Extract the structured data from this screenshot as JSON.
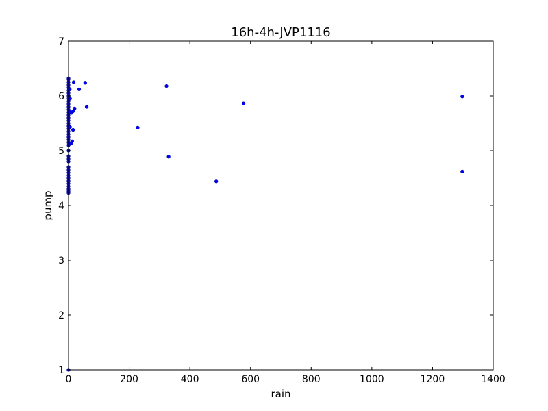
{
  "chart_data": {
    "type": "scatter",
    "title": "16h-4h-JVP1116",
    "xlabel": "rain",
    "ylabel": "pump",
    "xlim": [
      0,
      1400
    ],
    "ylim": [
      1,
      7
    ],
    "xticks": [
      0,
      200,
      400,
      600,
      800,
      1000,
      1200,
      1400
    ],
    "yticks": [
      1,
      2,
      3,
      4,
      5,
      6,
      7
    ],
    "xtick_labels": [
      "0",
      "200",
      "400",
      "600",
      "800",
      "1000",
      "1200",
      "1400"
    ],
    "ytick_labels": [
      "1",
      "2",
      "3",
      "4",
      "5",
      "6",
      "7"
    ],
    "grid": false,
    "marker_color": "#0000ff",
    "series": [
      {
        "points": [
          [
            0,
            1.0
          ],
          [
            0,
            4.23
          ],
          [
            0,
            4.26
          ],
          [
            0,
            4.3
          ],
          [
            0,
            4.35
          ],
          [
            0,
            4.4
          ],
          [
            0,
            4.45
          ],
          [
            0,
            4.5
          ],
          [
            0,
            4.55
          ],
          [
            0,
            4.6
          ],
          [
            0,
            4.65
          ],
          [
            0,
            4.7
          ],
          [
            0,
            4.8
          ],
          [
            0,
            4.85
          ],
          [
            0,
            4.9
          ],
          [
            0,
            5.0
          ],
          [
            0,
            5.1
          ],
          [
            0,
            5.15
          ],
          [
            0,
            5.2
          ],
          [
            0,
            5.25
          ],
          [
            0,
            5.3
          ],
          [
            0,
            5.35
          ],
          [
            0,
            5.4
          ],
          [
            0,
            5.45
          ],
          [
            0,
            5.5
          ],
          [
            0,
            5.55
          ],
          [
            0,
            5.6
          ],
          [
            0,
            5.65
          ],
          [
            0,
            5.7
          ],
          [
            0,
            5.75
          ],
          [
            0,
            5.8
          ],
          [
            0,
            5.85
          ],
          [
            0,
            5.9
          ],
          [
            0,
            5.95
          ],
          [
            0,
            6.0
          ],
          [
            0,
            6.05
          ],
          [
            0,
            6.1
          ],
          [
            0,
            6.15
          ],
          [
            0,
            6.2
          ],
          [
            0,
            6.25
          ],
          [
            0,
            6.3
          ],
          [
            0,
            6.32
          ],
          [
            2,
            5.45
          ],
          [
            3,
            5.12
          ],
          [
            3,
            5.71
          ],
          [
            4,
            6.12
          ],
          [
            5,
            5.95
          ],
          [
            5,
            5.43
          ],
          [
            8,
            5.13
          ],
          [
            10,
            5.69
          ],
          [
            12,
            5.17
          ],
          [
            15,
            5.72
          ],
          [
            15,
            5.38
          ],
          [
            17,
            6.25
          ],
          [
            20,
            5.77
          ],
          [
            35,
            6.12
          ],
          [
            55,
            6.24
          ],
          [
            60,
            5.8
          ],
          [
            228,
            5.42
          ],
          [
            323,
            6.18
          ],
          [
            330,
            4.89
          ],
          [
            487,
            4.44
          ],
          [
            577,
            5.86
          ],
          [
            1298,
            5.99
          ],
          [
            1298,
            4.62
          ]
        ]
      }
    ]
  }
}
